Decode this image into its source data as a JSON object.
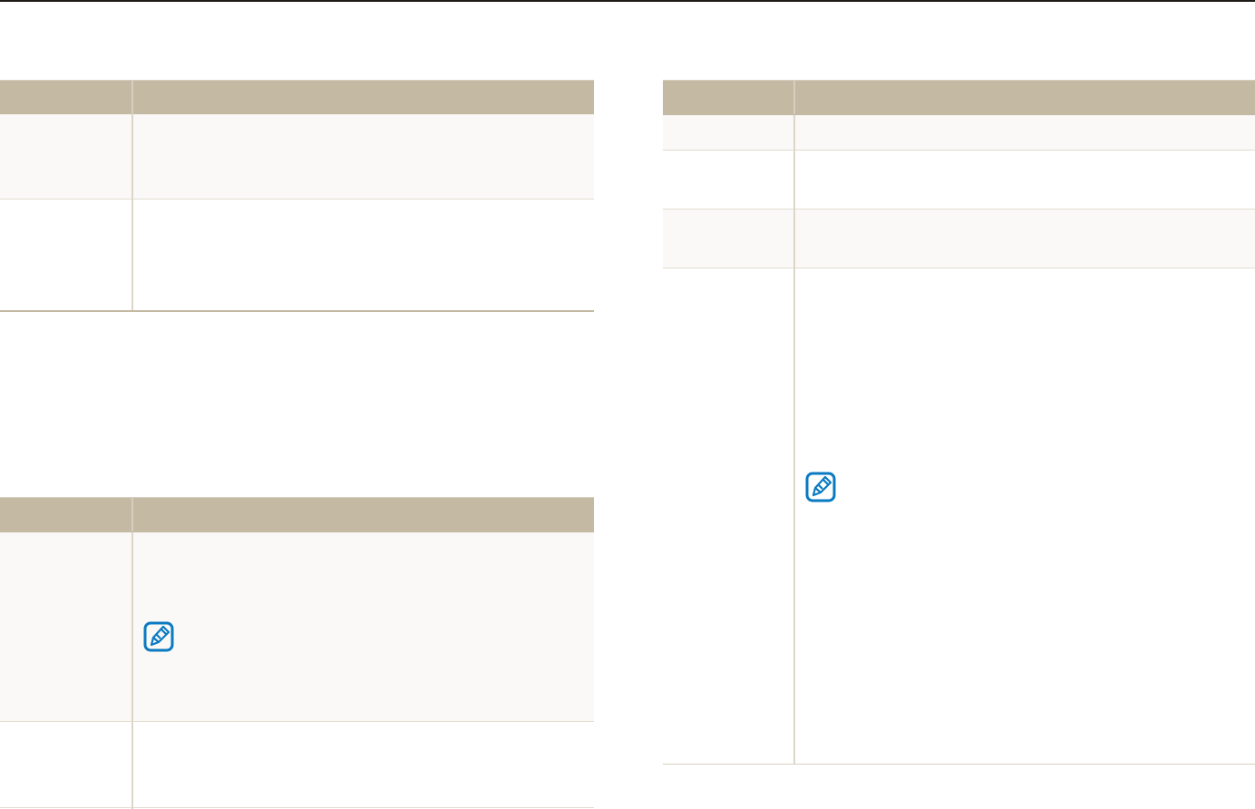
{
  "colors": {
    "header_bg": "#c4b9a2",
    "shaded_row_bg": "#faf9f7",
    "note_icon": "#0a7ac2",
    "top_rule": "#1e1a16"
  },
  "icons": {
    "note": "pencil-note-icon"
  },
  "tables": [
    {
      "id": "left-top",
      "rows": 2
    },
    {
      "id": "left-bottom",
      "rows": 2,
      "note_icon_in_row": 1
    },
    {
      "id": "right",
      "rows": 4,
      "note_icon_in_row": 4
    }
  ]
}
